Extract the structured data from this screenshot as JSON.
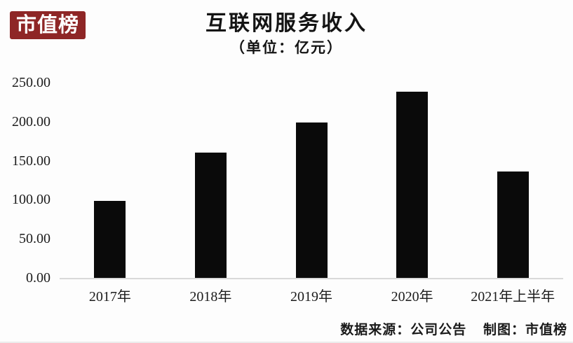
{
  "page": {
    "background_color": "#fdfdfd"
  },
  "logo": {
    "text": "市值榜",
    "bg_color": "#8e2626",
    "text_color": "#ffffff"
  },
  "header": {
    "title": "互联网服务收入",
    "subtitle": "（单位：亿元）"
  },
  "chart_data": {
    "type": "bar",
    "title": "互联网服务收入",
    "subtitle": "（单位：亿元）",
    "categories": [
      "2017年",
      "2018年",
      "2019年",
      "2020年",
      "2021年上半年"
    ],
    "values": [
      99,
      160,
      199,
      238,
      136
    ],
    "ylim": [
      0,
      250
    ],
    "ytick_step": 50,
    "ytick_labels": [
      "0.00",
      "50.00",
      "100.00",
      "150.00",
      "200.00",
      "250.00"
    ],
    "xlabel": "",
    "ylabel": "",
    "bar_color": "#0a0a0a",
    "grid": false,
    "legend": null
  },
  "footer": {
    "source": "数据来源：公司公告",
    "credit": "制图：市值榜"
  }
}
